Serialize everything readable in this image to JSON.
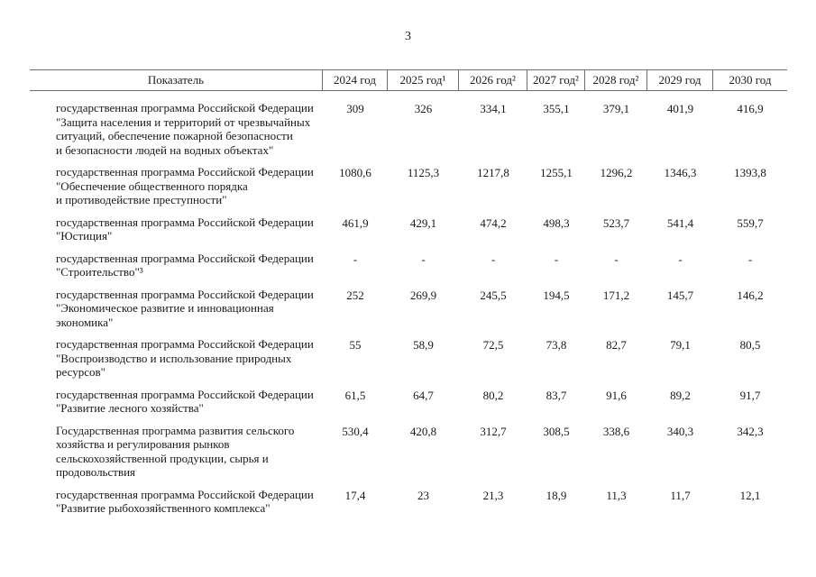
{
  "page": {
    "number": "3"
  },
  "colors": {
    "rule": "#6e6e6e",
    "text": "#1a1a1a",
    "background": "#ffffff"
  },
  "table": {
    "header": {
      "indicator": "Показатель",
      "years": [
        "2024 год",
        "2025 год¹",
        "2026 год²",
        "2027 год²",
        "2028 год²",
        "2029 год",
        "2030 год"
      ]
    },
    "rows": [
      {
        "label": "государственная программа Российской Федерации\n\"Защита населения и территорий от чрезвычайных\nситуаций, обеспечение пожарной безопасности\nи безопасности людей на водных объектах\"",
        "values": [
          "309",
          "326",
          "334,1",
          "355,1",
          "379,1",
          "401,9",
          "416,9"
        ]
      },
      {
        "label": "государственная программа Российской Федерации\n\"Обеспечение общественного порядка\nи противодействие преступности\"",
        "values": [
          "1080,6",
          "1125,3",
          "1217,8",
          "1255,1",
          "1296,2",
          "1346,3",
          "1393,8"
        ]
      },
      {
        "label": "государственная программа Российской Федерации\n\"Юстиция\"",
        "values": [
          "461,9",
          "429,1",
          "474,2",
          "498,3",
          "523,7",
          "541,4",
          "559,7"
        ]
      },
      {
        "label": "государственная программа Российской Федерации\n\"Строительство\"³",
        "values": [
          "-",
          "-",
          "-",
          "-",
          "-",
          "-",
          "-"
        ]
      },
      {
        "label": "государственная программа Российской Федерации\n\"Экономическое развитие и инновационная\nэкономика\"",
        "values": [
          "252",
          "269,9",
          "245,5",
          "194,5",
          "171,2",
          "145,7",
          "146,2"
        ]
      },
      {
        "label": "государственная программа Российской Федерации\n\"Воспроизводство и использование природных\nресурсов\"",
        "values": [
          "55",
          "58,9",
          "72,5",
          "73,8",
          "82,7",
          "79,1",
          "80,5"
        ]
      },
      {
        "label": "государственная программа Российской Федерации\n\"Развитие лесного хозяйства\"",
        "values": [
          "61,5",
          "64,7",
          "80,2",
          "83,7",
          "91,6",
          "89,2",
          "91,7"
        ]
      },
      {
        "label": "Государственная программа развития сельского\nхозяйства и регулирования рынков\nсельскохозяйственной продукции, сырья и\nпродовольствия",
        "values": [
          "530,4",
          "420,8",
          "312,7",
          "308,5",
          "338,6",
          "340,3",
          "342,3"
        ]
      },
      {
        "label": "государственная программа Российской Федерации\n\"Развитие рыбохозяйственного комплекса\"",
        "values": [
          "17,4",
          "23",
          "21,3",
          "18,9",
          "11,3",
          "11,7",
          "12,1"
        ]
      }
    ]
  }
}
